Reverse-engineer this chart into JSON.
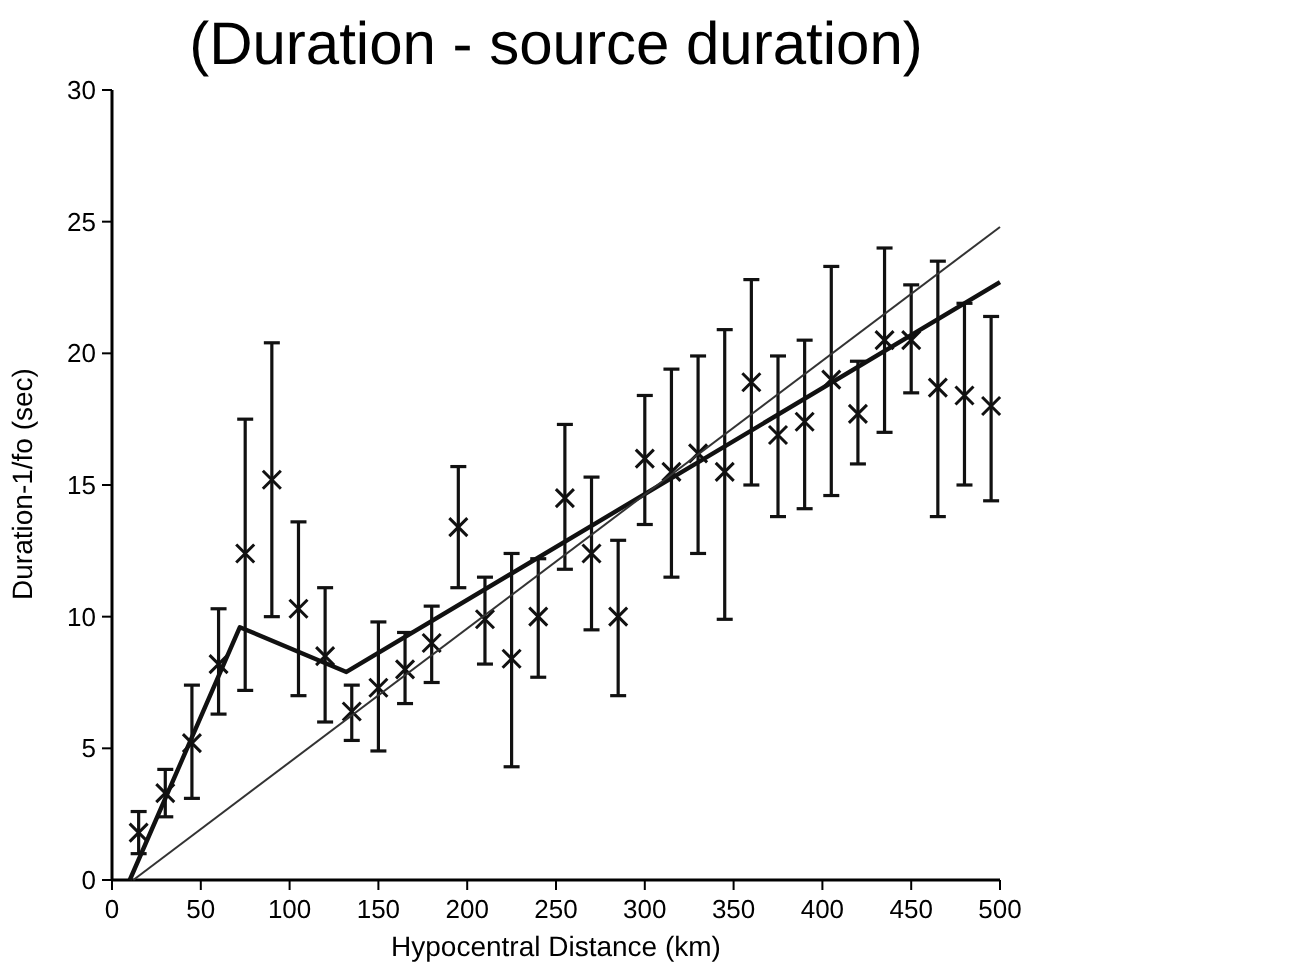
{
  "chart_data": {
    "type": "scatter",
    "title": "(Duration - source duration)",
    "xlabel": "Hypocentral Distance (km)",
    "ylabel": "Duration-1/fo (sec)",
    "xlim": [
      0,
      500
    ],
    "ylim": [
      0,
      30
    ],
    "xticks": [
      0,
      50,
      100,
      150,
      200,
      250,
      300,
      350,
      400,
      450,
      500
    ],
    "yticks": [
      0,
      5,
      10,
      15,
      20,
      25,
      30
    ],
    "grid": false,
    "series": [
      {
        "marker": "cross",
        "color": "#111111",
        "x": [
          15,
          30,
          45,
          60,
          75,
          90,
          105,
          120,
          135,
          150,
          165,
          180,
          195,
          210,
          225,
          240,
          255,
          270,
          285,
          300,
          315,
          330,
          345,
          360,
          375,
          390,
          405,
          420,
          435,
          450,
          465,
          480,
          495
        ],
        "values": [
          1.8,
          3.3,
          5.2,
          8.2,
          12.4,
          15.2,
          10.3,
          8.5,
          6.4,
          7.3,
          8.0,
          9.0,
          13.4,
          9.9,
          8.4,
          10.0,
          14.5,
          12.4,
          10.0,
          16.0,
          15.5,
          16.2,
          15.5,
          18.9,
          16.9,
          17.4,
          19.0,
          17.7,
          20.5,
          20.5,
          18.7,
          18.4,
          18.0
        ],
        "errors": [
          [
            1.0,
            2.6
          ],
          [
            2.4,
            4.2
          ],
          [
            3.1,
            7.4
          ],
          [
            6.3,
            10.3
          ],
          [
            7.2,
            17.5
          ],
          [
            10.0,
            20.4
          ],
          [
            7.0,
            13.6
          ],
          [
            6.0,
            11.1
          ],
          [
            5.3,
            7.4
          ],
          [
            4.9,
            9.8
          ],
          [
            6.7,
            9.4
          ],
          [
            7.5,
            10.4
          ],
          [
            11.1,
            15.7
          ],
          [
            8.2,
            11.5
          ],
          [
            4.3,
            12.4
          ],
          [
            7.7,
            12.2
          ],
          [
            11.8,
            17.3
          ],
          [
            9.5,
            15.3
          ],
          [
            7.0,
            12.9
          ],
          [
            13.5,
            18.4
          ],
          [
            11.5,
            19.4
          ],
          [
            12.4,
            19.9
          ],
          [
            9.9,
            20.9
          ],
          [
            15.0,
            22.8
          ],
          [
            13.8,
            19.9
          ],
          [
            14.1,
            20.5
          ],
          [
            14.6,
            23.3
          ],
          [
            15.8,
            19.7
          ],
          [
            17.0,
            24.0
          ],
          [
            18.5,
            22.6
          ],
          [
            13.8,
            23.5
          ],
          [
            15.0,
            21.9
          ],
          [
            14.4,
            21.4
          ]
        ]
      },
      {
        "type": "line",
        "color": "#111111",
        "x": [
          10,
          72,
          132,
          500
        ],
        "values": [
          0,
          9.6,
          7.9,
          22.7
        ]
      },
      {
        "type": "line",
        "color": "#333333",
        "line_style": "solid",
        "x": [
          12,
          500
        ],
        "values": [
          0,
          24.8
        ]
      }
    ]
  }
}
